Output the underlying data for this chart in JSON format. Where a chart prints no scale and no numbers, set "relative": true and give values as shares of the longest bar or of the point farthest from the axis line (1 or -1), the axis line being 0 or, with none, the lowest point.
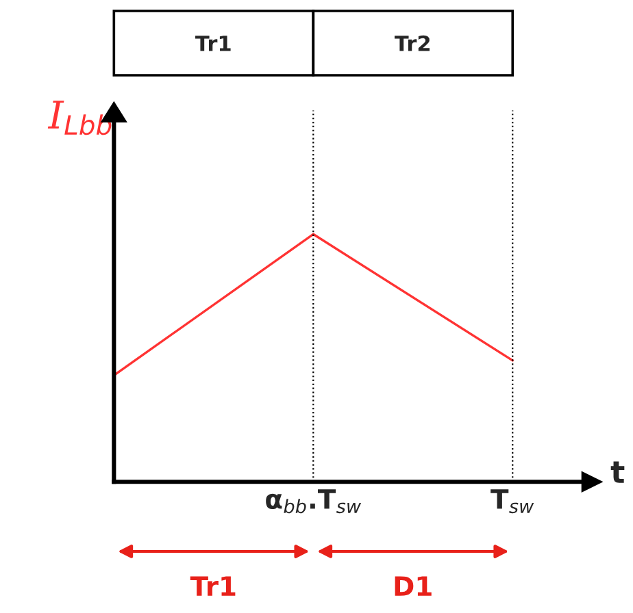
{
  "chart_data": {
    "type": "line",
    "relative": true,
    "ylabel": "I$_{Lbb}$",
    "xlabel": "t",
    "categories": [
      null,
      "α$_{bb}$.T$_{sw}$",
      "T$_{sw}$"
    ],
    "tick_labels": "x",
    "grid": false,
    "marker": "none",
    "line_style": "solid",
    "series": [
      {
        "color": "#ff3333",
        "values": [
          0.43,
          1,
          0.49
        ]
      }
    ],
    "ref_lines": [
      {
        "axis": "x",
        "value": "α$_{bb}$.T$_{sw}$",
        "color": "#000000",
        "line_style": "dotted"
      },
      {
        "axis": "x",
        "value": "T$_{sw}$",
        "color": "#000000",
        "line_style": "dotted"
      }
    ],
    "annotations": [
      "Tr1",
      "Tr2",
      "Tr1",
      "D1"
    ]
  }
}
